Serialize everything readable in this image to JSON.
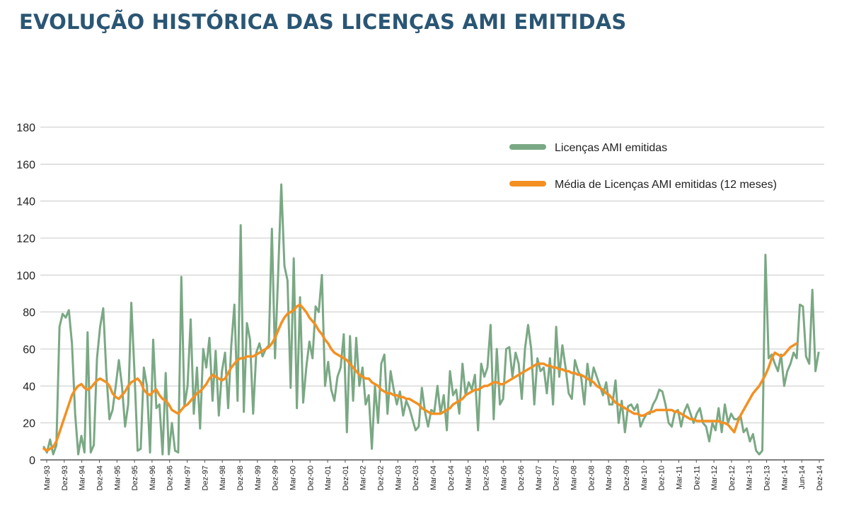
{
  "title": "EVOLUÇÃO HISTÓRICA DAS LICENÇAS AMI EMITIDAS",
  "colors": {
    "title": "#2a5674",
    "monthly": "#7aa884",
    "average": "#f39021",
    "grid": "#c8c8c8",
    "axis": "#555555"
  },
  "chart_data": {
    "type": "line",
    "title": "EVOLUÇÃO HISTÓRICA DAS LICENÇAS AMI EMITIDAS",
    "xlabel": "",
    "ylabel": "",
    "ylim": [
      0,
      180
    ],
    "yticks": [
      0,
      20,
      40,
      60,
      80,
      100,
      120,
      140,
      160,
      180
    ],
    "grid": true,
    "legend_position": "top-right",
    "x_tick_labels": [
      "Mar-93",
      "Dez-93",
      "Mar-94",
      "Dez-94",
      "Mar-95",
      "Dez-95",
      "Mar-96",
      "Dez-96",
      "Mar-97",
      "Dez-97",
      "Mar-98",
      "Dez-98",
      "Mar-99",
      "Dez-99",
      "Mar-00",
      "Dez-00",
      "Mar-01",
      "Dez-01",
      "Mar-02",
      "Dez-02",
      "Mar-03",
      "Dez-03",
      "Mar-04",
      "Dez-04",
      "Mar-05",
      "Dez-05",
      "Mar-06",
      "Dez-06",
      "Mar-07",
      "Dez-07",
      "Mar-08",
      "Dez-08",
      "Mar-09",
      "Dez-09",
      "Mar-10",
      "Dez-10",
      "Mar-11",
      "Dez-11",
      "Mar-12",
      "Dez-12",
      "Mar-13",
      "Dez-13",
      "Mar-14",
      "Jun-14",
      "Dez-14"
    ],
    "series": [
      {
        "name": "Licenças AMI emitidas",
        "values": [
          7,
          4,
          11,
          3,
          8,
          72,
          79,
          77,
          81,
          63,
          25,
          3,
          13,
          4,
          69,
          4,
          8,
          55,
          72,
          82,
          47,
          22,
          27,
          40,
          54,
          40,
          18,
          30,
          85,
          48,
          5,
          6,
          50,
          40,
          4,
          65,
          28,
          30,
          3,
          47,
          3,
          20,
          5,
          4,
          99,
          29,
          40,
          76,
          25,
          50,
          17,
          60,
          50,
          66,
          32,
          59,
          24,
          48,
          58,
          28,
          62,
          84,
          32,
          127,
          26,
          74,
          65,
          25,
          58,
          63,
          56,
          60,
          62,
          125,
          55,
          100,
          149,
          105,
          97,
          39,
          109,
          28,
          88,
          31,
          50,
          64,
          55,
          83,
          80,
          100,
          40,
          53,
          38,
          32,
          45,
          50,
          68,
          15,
          67,
          32,
          66,
          40,
          50,
          30,
          35,
          6,
          40,
          20,
          52,
          57,
          25,
          48,
          38,
          30,
          37,
          24,
          32,
          28,
          22,
          16,
          18,
          39,
          26,
          18,
          27,
          26,
          40,
          25,
          35,
          16,
          48,
          35,
          38,
          25,
          52,
          35,
          42,
          38,
          46,
          16,
          52,
          45,
          50,
          73,
          22,
          60,
          30,
          33,
          60,
          61,
          45,
          58,
          52,
          33,
          60,
          73,
          60,
          30,
          55,
          48,
          50,
          36,
          55,
          30,
          72,
          45,
          62,
          50,
          36,
          33,
          54,
          48,
          45,
          30,
          52,
          40,
          50,
          45,
          40,
          35,
          42,
          30,
          30,
          43,
          20,
          32,
          15,
          29,
          30,
          27,
          30,
          18,
          22,
          25,
          25,
          30,
          33,
          38,
          37,
          30,
          20,
          18,
          26,
          27,
          18,
          26,
          30,
          25,
          20,
          25,
          28,
          20,
          18,
          10,
          20,
          16,
          28,
          15,
          30,
          20,
          25,
          22,
          22,
          24,
          15,
          17,
          10,
          14,
          5,
          3,
          5,
          111,
          55,
          57,
          52,
          48,
          57,
          40,
          48,
          52,
          58,
          55,
          84,
          83,
          56,
          52,
          92,
          48,
          58
        ]
      },
      {
        "name": "Média de Licenças AMI emitidas (12 meses)",
        "values": [
          6,
          5,
          6,
          7,
          10,
          15,
          20,
          25,
          30,
          35,
          38,
          40,
          41,
          39,
          38,
          39,
          41,
          43,
          44,
          43,
          42,
          40,
          36,
          34,
          33,
          35,
          37,
          40,
          42,
          43,
          44,
          42,
          38,
          36,
          35,
          37,
          38,
          35,
          33,
          32,
          30,
          27,
          26,
          25,
          27,
          29,
          30,
          32,
          34,
          36,
          37,
          39,
          41,
          44,
          46,
          45,
          44,
          43,
          44,
          47,
          50,
          52,
          54,
          55,
          55,
          56,
          56,
          56,
          57,
          58,
          59,
          60,
          61,
          63,
          66,
          70,
          74,
          77,
          79,
          80,
          81,
          83,
          84,
          82,
          80,
          77,
          75,
          73,
          70,
          68,
          65,
          63,
          60,
          58,
          57,
          56,
          55,
          54,
          52,
          50,
          48,
          46,
          45,
          44,
          44,
          42,
          41,
          40,
          38,
          37,
          36,
          36,
          35,
          35,
          34,
          34,
          33,
          33,
          32,
          31,
          30,
          28,
          27,
          26,
          25,
          25,
          25,
          25,
          26,
          27,
          28,
          30,
          31,
          32,
          33,
          35,
          36,
          37,
          38,
          38,
          39,
          40,
          40,
          41,
          42,
          42,
          41,
          41,
          42,
          43,
          44,
          45,
          46,
          47,
          48,
          49,
          50,
          51,
          52,
          52,
          52,
          51,
          51,
          50,
          50,
          49,
          49,
          48,
          48,
          47,
          47,
          46,
          46,
          45,
          44,
          43,
          42,
          40,
          39,
          38,
          36,
          35,
          33,
          31,
          30,
          29,
          28,
          27,
          26,
          25,
          25,
          24,
          24,
          25,
          26,
          26,
          27,
          27,
          27,
          27,
          27,
          27,
          26,
          26,
          25,
          24,
          23,
          22,
          22,
          21,
          21,
          21,
          21,
          21,
          21,
          21,
          21,
          20,
          20,
          19,
          17,
          15,
          20,
          24,
          27,
          30,
          33,
          36,
          38,
          40,
          43,
          46,
          50,
          55,
          58,
          57,
          56,
          57,
          59,
          61,
          62,
          63
        ]
      }
    ]
  }
}
